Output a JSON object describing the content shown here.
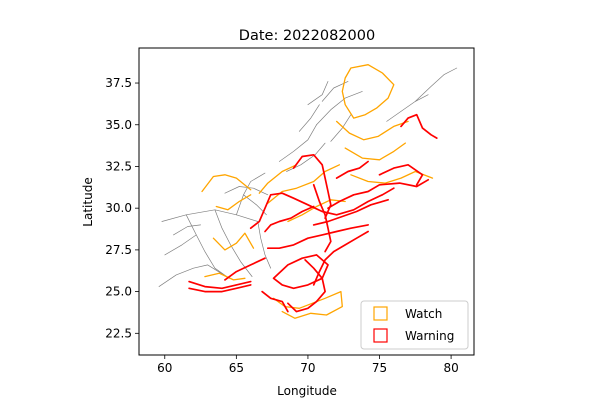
{
  "chart_data": {
    "type": "map",
    "title": "Date: 2022082000",
    "xlabel": "Longitude",
    "ylabel": "Latitude",
    "xlim": [
      58.2,
      81.6
    ],
    "ylim": [
      21.2,
      39.6
    ],
    "xticks": [
      60,
      65,
      70,
      75,
      80
    ],
    "yticks": [
      22.5,
      25.0,
      27.5,
      30.0,
      32.5,
      35.0,
      37.5
    ],
    "xtick_labels": [
      "60",
      "65",
      "70",
      "75",
      "80"
    ],
    "ytick_labels": [
      "22.5",
      "25.0",
      "27.5",
      "30.0",
      "32.5",
      "35.0",
      "37.5"
    ],
    "grid": false,
    "legend": {
      "placement": "lower-right",
      "entries": [
        {
          "label": "Watch",
          "color": "#ffa500"
        },
        {
          "label": "Warning",
          "color": "#ff0000"
        }
      ]
    },
    "colors": {
      "boundary": "#808080",
      "watch": "#ffa500",
      "warning": "#ff0000"
    },
    "layers": {
      "boundaries": [
        [
          [
            59.8,
            29.2
          ],
          [
            61.5,
            29.6
          ],
          [
            63.5,
            29.9
          ],
          [
            65.0,
            29.6
          ],
          [
            66.5,
            29.2
          ]
        ],
        [
          [
            61.5,
            29.6
          ],
          [
            62.2,
            28.4
          ],
          [
            62.8,
            27.4
          ],
          [
            63.5,
            26.4
          ],
          [
            64.5,
            25.8
          ]
        ],
        [
          [
            63.5,
            29.9
          ],
          [
            64.0,
            28.8
          ],
          [
            64.6,
            27.8
          ],
          [
            65.3,
            26.8
          ],
          [
            66.1,
            25.9
          ]
        ],
        [
          [
            65.0,
            29.6
          ],
          [
            65.5,
            30.8
          ],
          [
            66.0,
            31.6
          ],
          [
            67.0,
            32.1
          ]
        ],
        [
          [
            66.5,
            29.2
          ],
          [
            66.7,
            28.2
          ],
          [
            67.0,
            27.2
          ],
          [
            67.4,
            26.4
          ]
        ],
        [
          [
            59.6,
            25.3
          ],
          [
            60.8,
            26.0
          ],
          [
            62.0,
            26.4
          ],
          [
            63.0,
            26.6
          ],
          [
            64.5,
            25.8
          ]
        ],
        [
          [
            60.0,
            27.2
          ],
          [
            61.2,
            27.8
          ],
          [
            62.2,
            28.4
          ]
        ],
        [
          [
            60.6,
            28.4
          ],
          [
            61.6,
            28.9
          ],
          [
            62.5,
            29.0
          ]
        ],
        [
          [
            64.2,
            30.9
          ],
          [
            65.2,
            31.3
          ],
          [
            66.2,
            31.2
          ],
          [
            67.2,
            30.8
          ]
        ],
        [
          [
            65.5,
            30.8
          ],
          [
            66.4,
            30.2
          ],
          [
            67.1,
            29.6
          ]
        ],
        [
          [
            68.0,
            32.8
          ],
          [
            69.0,
            33.4
          ],
          [
            70.0,
            34.1
          ],
          [
            70.6,
            35.0
          ]
        ],
        [
          [
            68.5,
            32.2
          ],
          [
            69.5,
            32.6
          ],
          [
            70.5,
            33.2
          ],
          [
            71.2,
            33.9
          ]
        ],
        [
          [
            70.6,
            35.0
          ],
          [
            71.6,
            35.9
          ],
          [
            72.6,
            36.6
          ],
          [
            73.8,
            37.0
          ]
        ],
        [
          [
            71.0,
            36.4
          ],
          [
            71.8,
            37.2
          ],
          [
            72.8,
            37.6
          ]
        ],
        [
          [
            70.0,
            36.2
          ],
          [
            71.0,
            36.8
          ],
          [
            71.4,
            37.6
          ]
        ],
        [
          [
            69.4,
            34.6
          ],
          [
            70.2,
            35.4
          ],
          [
            70.8,
            36.2
          ]
        ],
        [
          [
            75.5,
            35.2
          ],
          [
            76.5,
            35.8
          ],
          [
            77.5,
            36.4
          ],
          [
            78.4,
            36.8
          ]
        ],
        [
          [
            77.5,
            36.4
          ],
          [
            78.6,
            37.3
          ],
          [
            79.5,
            38.0
          ],
          [
            80.4,
            38.4
          ]
        ],
        [
          [
            71.6,
            34.0
          ],
          [
            72.4,
            34.8
          ],
          [
            73.0,
            35.6
          ]
        ]
      ],
      "watch": [
        [
          [
            73.0,
            38.4
          ],
          [
            74.2,
            38.6
          ],
          [
            75.2,
            38.1
          ],
          [
            76.0,
            37.4
          ],
          [
            75.6,
            36.6
          ],
          [
            74.8,
            36.0
          ],
          [
            74.0,
            35.6
          ],
          [
            73.2,
            35.4
          ],
          [
            72.6,
            36.2
          ],
          [
            72.4,
            37.0
          ],
          [
            72.6,
            37.8
          ],
          [
            73.0,
            38.4
          ]
        ],
        [
          [
            72.0,
            35.2
          ],
          [
            72.9,
            34.5
          ],
          [
            73.9,
            34.1
          ],
          [
            74.9,
            34.3
          ],
          [
            76.0,
            34.9
          ],
          [
            77.0,
            35.2
          ]
        ],
        [
          [
            72.6,
            33.6
          ],
          [
            73.8,
            33.0
          ],
          [
            75.0,
            32.9
          ],
          [
            76.0,
            33.4
          ],
          [
            76.8,
            33.9
          ]
        ],
        [
          [
            73.0,
            32.0
          ],
          [
            74.2,
            31.6
          ],
          [
            75.4,
            31.5
          ],
          [
            76.5,
            31.8
          ],
          [
            77.5,
            32.2
          ],
          [
            78.7,
            31.8
          ]
        ],
        [
          [
            67.2,
            30.3
          ],
          [
            68.2,
            31.0
          ],
          [
            69.2,
            31.2
          ],
          [
            70.4,
            31.6
          ],
          [
            71.2,
            32.2
          ],
          [
            72.2,
            32.6
          ]
        ],
        [
          [
            66.6,
            30.9
          ],
          [
            67.2,
            31.5
          ],
          [
            68.2,
            32.2
          ],
          [
            69.2,
            32.6
          ]
        ],
        [
          [
            62.6,
            31.0
          ],
          [
            63.4,
            31.9
          ],
          [
            64.2,
            32.0
          ],
          [
            65.0,
            31.8
          ],
          [
            66.0,
            31.1
          ]
        ],
        [
          [
            63.6,
            30.1
          ],
          [
            64.4,
            29.9
          ],
          [
            65.2,
            30.4
          ],
          [
            66.0,
            30.8
          ]
        ],
        [
          [
            63.4,
            28.2
          ],
          [
            64.2,
            27.5
          ],
          [
            65.0,
            27.9
          ],
          [
            65.6,
            28.5
          ],
          [
            66.2,
            27.6
          ]
        ],
        [
          [
            62.8,
            25.9
          ],
          [
            63.8,
            26.1
          ],
          [
            64.8,
            25.7
          ],
          [
            65.6,
            25.8
          ]
        ],
        [
          [
            67.6,
            24.6
          ],
          [
            68.4,
            24.1
          ],
          [
            69.4,
            24.0
          ],
          [
            70.3,
            24.3
          ],
          [
            71.2,
            24.6
          ],
          [
            72.3,
            25.0
          ],
          [
            72.4,
            24.1
          ],
          [
            71.3,
            23.6
          ],
          [
            70.2,
            23.7
          ],
          [
            69.1,
            23.4
          ],
          [
            68.2,
            23.8
          ]
        ],
        [
          [
            68.6,
            29.2
          ],
          [
            69.6,
            29.6
          ],
          [
            70.6,
            30.1
          ],
          [
            71.6,
            30.5
          ],
          [
            72.6,
            30.4
          ]
        ]
      ],
      "warning": [
        [
          [
            61.7,
            25.6
          ],
          [
            62.8,
            25.3
          ],
          [
            64.0,
            25.2
          ],
          [
            65.0,
            25.4
          ],
          [
            66.0,
            25.6
          ]
        ],
        [
          [
            61.7,
            25.2
          ],
          [
            62.8,
            25.0
          ],
          [
            64.0,
            25.0
          ],
          [
            65.0,
            25.2
          ],
          [
            66.0,
            25.4
          ]
        ],
        [
          [
            64.2,
            25.7
          ],
          [
            65.0,
            26.2
          ],
          [
            66.0,
            26.6
          ],
          [
            67.0,
            27.0
          ]
        ],
        [
          [
            66.0,
            28.8
          ],
          [
            66.6,
            29.2
          ],
          [
            67.0,
            30.0
          ],
          [
            67.4,
            30.8
          ],
          [
            68.2,
            30.9
          ],
          [
            69.0,
            30.6
          ],
          [
            70.0,
            30.2
          ],
          [
            71.0,
            29.8
          ],
          [
            72.0,
            29.6
          ],
          [
            73.2,
            29.9
          ],
          [
            74.2,
            30.4
          ],
          [
            75.2,
            30.8
          ],
          [
            76.0,
            31.2
          ]
        ],
        [
          [
            67.6,
            25.8
          ],
          [
            68.2,
            25.4
          ],
          [
            69.0,
            25.2
          ],
          [
            70.0,
            25.4
          ],
          [
            71.0,
            25.8
          ],
          [
            71.4,
            26.6
          ],
          [
            70.6,
            27.2
          ],
          [
            69.6,
            27.0
          ],
          [
            68.6,
            26.6
          ],
          [
            67.6,
            25.8
          ]
        ],
        [
          [
            69.0,
            32.4
          ],
          [
            69.6,
            33.1
          ],
          [
            70.4,
            33.2
          ],
          [
            71.0,
            32.6
          ],
          [
            71.2,
            31.8
          ],
          [
            71.4,
            31.0
          ],
          [
            71.6,
            30.2
          ],
          [
            71.2,
            29.4
          ]
        ],
        [
          [
            70.4,
            31.4
          ],
          [
            70.8,
            30.4
          ],
          [
            71.2,
            29.6
          ],
          [
            71.4,
            28.8
          ],
          [
            71.6,
            28.0
          ],
          [
            71.2,
            27.4
          ]
        ],
        [
          [
            71.4,
            30.0
          ],
          [
            72.2,
            30.4
          ],
          [
            73.2,
            30.8
          ],
          [
            74.2,
            31.0
          ],
          [
            75.0,
            31.4
          ],
          [
            76.4,
            31.5
          ],
          [
            77.6,
            31.3
          ],
          [
            78.4,
            31.7
          ]
        ],
        [
          [
            70.4,
            29.0
          ],
          [
            71.4,
            29.2
          ],
          [
            72.4,
            29.5
          ],
          [
            73.4,
            29.8
          ],
          [
            74.4,
            30.2
          ],
          [
            75.6,
            30.5
          ]
        ],
        [
          [
            67.2,
            27.6
          ],
          [
            68.0,
            27.6
          ],
          [
            69.0,
            27.8
          ],
          [
            70.0,
            28.2
          ],
          [
            71.0,
            28.4
          ],
          [
            72.0,
            28.6
          ],
          [
            73.0,
            28.8
          ],
          [
            74.2,
            29.0
          ]
        ],
        [
          [
            68.6,
            24.3
          ],
          [
            69.2,
            23.8
          ],
          [
            70.0,
            24.0
          ],
          [
            70.6,
            24.4
          ],
          [
            71.2,
            25.0
          ],
          [
            71.0,
            25.8
          ],
          [
            70.4,
            26.4
          ],
          [
            69.8,
            26.9
          ]
        ],
        [
          [
            66.8,
            25.0
          ],
          [
            67.4,
            24.6
          ],
          [
            68.2,
            24.4
          ],
          [
            68.6,
            23.8
          ]
        ],
        [
          [
            70.4,
            25.4
          ],
          [
            70.8,
            26.2
          ],
          [
            71.2,
            26.9
          ],
          [
            71.8,
            27.4
          ],
          [
            72.6,
            27.8
          ],
          [
            73.4,
            28.2
          ],
          [
            74.2,
            28.6
          ]
        ],
        [
          [
            67.0,
            28.6
          ],
          [
            67.4,
            29.0
          ],
          [
            68.0,
            29.2
          ],
          [
            68.8,
            29.4
          ],
          [
            69.6,
            29.8
          ],
          [
            70.4,
            30.1
          ]
        ],
        [
          [
            72.0,
            31.8
          ],
          [
            72.8,
            32.2
          ],
          [
            73.6,
            32.4
          ],
          [
            74.2,
            32.8
          ]
        ],
        [
          [
            75.0,
            32.0
          ],
          [
            76.0,
            32.4
          ],
          [
            77.0,
            32.6
          ],
          [
            78.0,
            32.0
          ],
          [
            77.6,
            31.4
          ]
        ],
        [
          [
            76.5,
            34.9
          ],
          [
            77.0,
            35.4
          ],
          [
            77.6,
            35.6
          ],
          [
            78.0,
            34.8
          ],
          [
            78.6,
            34.4
          ],
          [
            79.0,
            34.2
          ]
        ]
      ]
    }
  }
}
